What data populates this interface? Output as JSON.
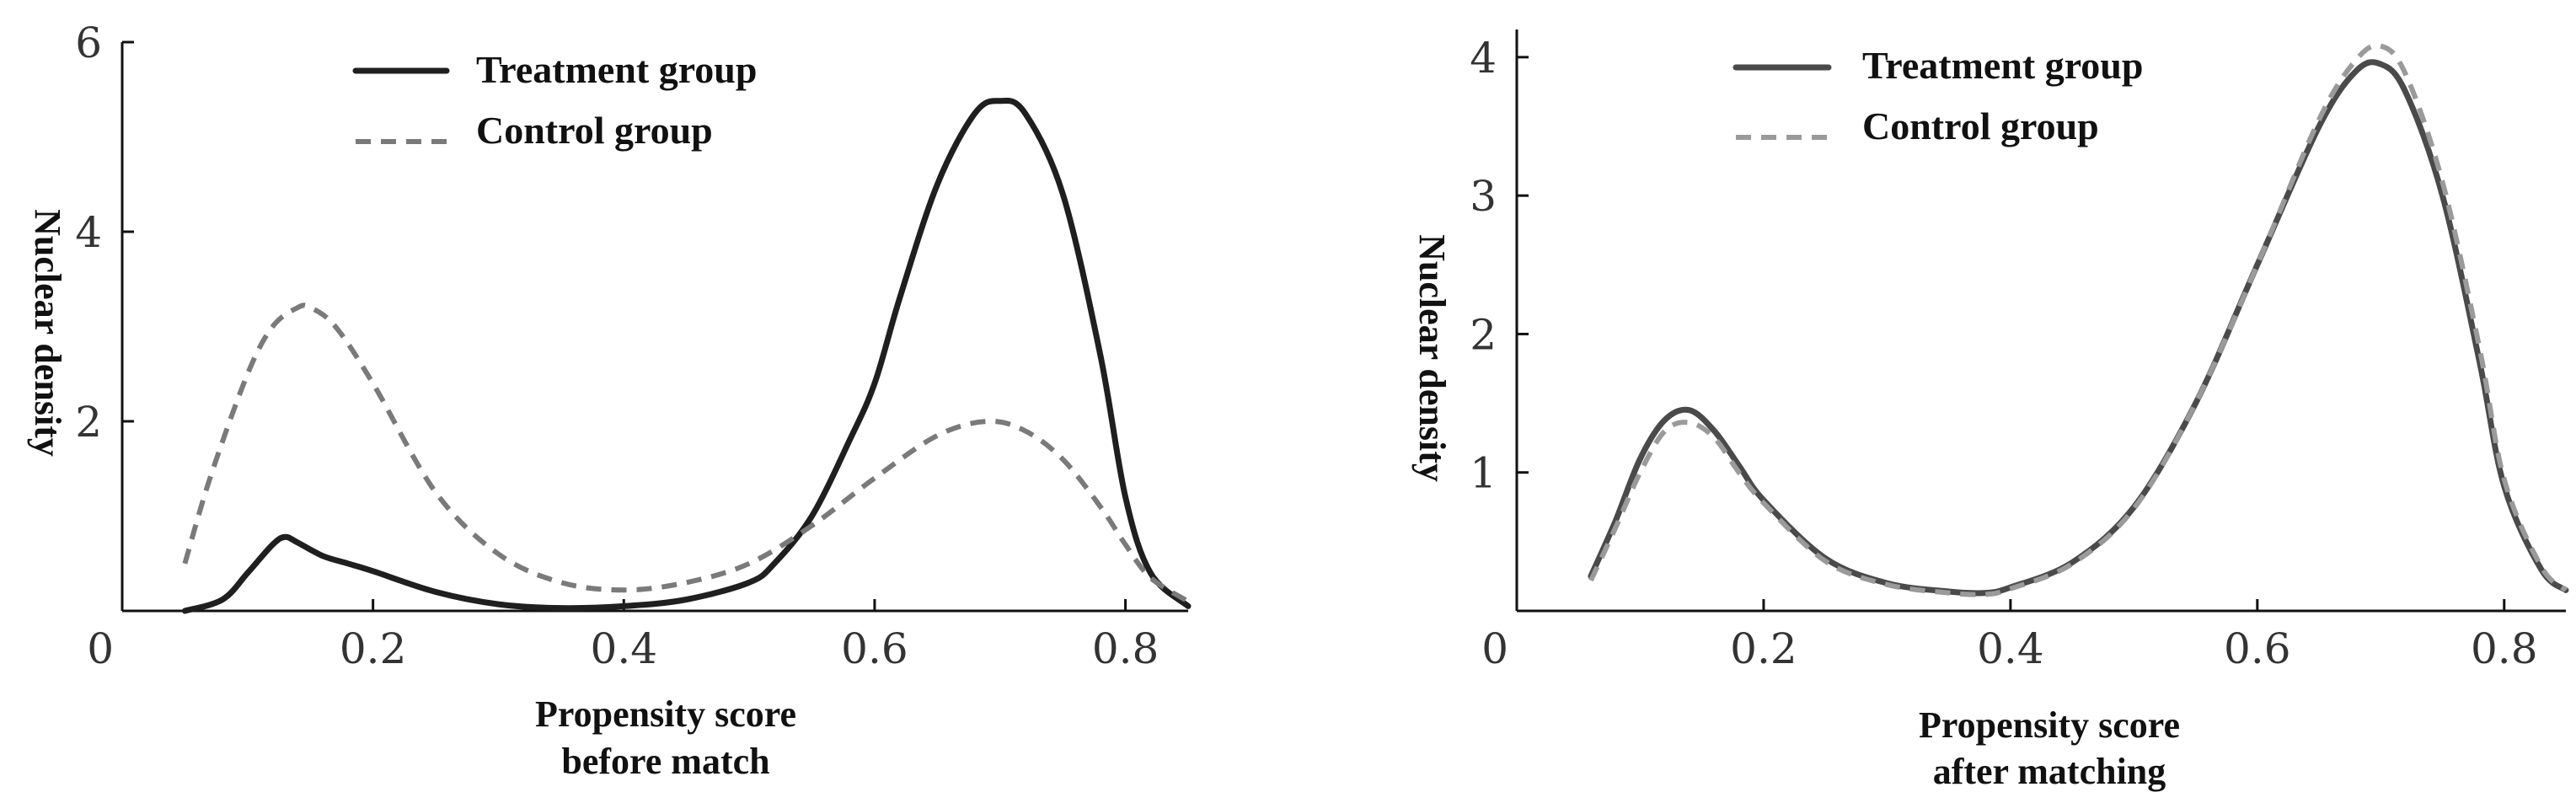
{
  "chart_data": [
    {
      "type": "line",
      "xlabel": "Propensity score\nbefore match",
      "ylabel": "Nuclear density",
      "xlim": [
        0,
        0.85
      ],
      "ylim": [
        0,
        6
      ],
      "x_ticks": [
        0,
        0.2,
        0.4,
        0.6,
        0.8
      ],
      "x_tick_labels": [
        "0",
        "0.2",
        "0.4",
        "0.6",
        "0.8"
      ],
      "y_ticks": [
        2,
        4,
        6
      ],
      "y_tick_labels": [
        "2",
        "4",
        "6"
      ],
      "legend_position": "top-left",
      "grid": false,
      "series": [
        {
          "name": "Treatment group",
          "style": "solid",
          "color": "#1f1f1f",
          "x": [
            0.05,
            0.08,
            0.1,
            0.12,
            0.13,
            0.14,
            0.16,
            0.18,
            0.2,
            0.25,
            0.3,
            0.35,
            0.4,
            0.45,
            0.5,
            0.52,
            0.55,
            0.58,
            0.6,
            0.62,
            0.65,
            0.68,
            0.7,
            0.72,
            0.75,
            0.78,
            0.8,
            0.82,
            0.85
          ],
          "y": [
            0.0,
            0.12,
            0.4,
            0.7,
            0.78,
            0.72,
            0.58,
            0.5,
            0.42,
            0.2,
            0.07,
            0.03,
            0.05,
            0.12,
            0.3,
            0.5,
            1.0,
            1.8,
            2.4,
            3.3,
            4.5,
            5.25,
            5.38,
            5.25,
            4.4,
            2.7,
            1.2,
            0.4,
            0.05
          ]
        },
        {
          "name": "Control group",
          "style": "dashed",
          "color": "#7a7a7a",
          "x": [
            0.05,
            0.07,
            0.1,
            0.12,
            0.14,
            0.15,
            0.17,
            0.2,
            0.25,
            0.3,
            0.35,
            0.4,
            0.45,
            0.5,
            0.55,
            0.6,
            0.65,
            0.69,
            0.72,
            0.75,
            0.78,
            0.8,
            0.82,
            0.85
          ],
          "y": [
            0.5,
            1.4,
            2.5,
            3.0,
            3.2,
            3.2,
            3.0,
            2.4,
            1.25,
            0.6,
            0.3,
            0.22,
            0.3,
            0.5,
            0.9,
            1.4,
            1.85,
            2.0,
            1.9,
            1.6,
            1.1,
            0.7,
            0.35,
            0.1
          ]
        }
      ]
    },
    {
      "type": "line",
      "xlabel": "Propensity score\nafter matching",
      "ylabel": "Nuclear density",
      "xlim": [
        0,
        0.85
      ],
      "ylim": [
        0,
        4.2
      ],
      "x_ticks": [
        0,
        0.2,
        0.4,
        0.6,
        0.8
      ],
      "x_tick_labels": [
        "0",
        "0.2",
        "0.4",
        "0.6",
        "0.8"
      ],
      "y_ticks": [
        1,
        2,
        3,
        4
      ],
      "y_tick_labels": [
        "1",
        "2",
        "3",
        "4"
      ],
      "legend_position": "top-left",
      "grid": false,
      "series": [
        {
          "name": "Treatment group",
          "style": "solid",
          "color": "#4a4a4a",
          "x": [
            0.06,
            0.08,
            0.1,
            0.12,
            0.14,
            0.16,
            0.18,
            0.2,
            0.25,
            0.3,
            0.35,
            0.38,
            0.4,
            0.45,
            0.5,
            0.55,
            0.6,
            0.65,
            0.68,
            0.7,
            0.72,
            0.75,
            0.78,
            0.8,
            0.83,
            0.85
          ],
          "y": [
            0.25,
            0.65,
            1.1,
            1.38,
            1.45,
            1.3,
            1.05,
            0.8,
            0.38,
            0.2,
            0.14,
            0.13,
            0.17,
            0.35,
            0.75,
            1.5,
            2.5,
            3.5,
            3.9,
            3.95,
            3.75,
            3.0,
            1.8,
            0.9,
            0.3,
            0.15
          ]
        },
        {
          "name": "Control group",
          "style": "dashed",
          "color": "#9a9a9a",
          "x": [
            0.06,
            0.08,
            0.1,
            0.12,
            0.14,
            0.16,
            0.18,
            0.2,
            0.25,
            0.3,
            0.35,
            0.38,
            0.4,
            0.45,
            0.5,
            0.55,
            0.6,
            0.65,
            0.68,
            0.7,
            0.72,
            0.75,
            0.78,
            0.8,
            0.83,
            0.85
          ],
          "y": [
            0.22,
            0.6,
            1.0,
            1.3,
            1.36,
            1.25,
            1.0,
            0.78,
            0.36,
            0.19,
            0.13,
            0.12,
            0.16,
            0.34,
            0.74,
            1.5,
            2.5,
            3.55,
            3.98,
            4.08,
            3.88,
            3.1,
            1.9,
            0.95,
            0.32,
            0.15
          ]
        }
      ]
    }
  ]
}
